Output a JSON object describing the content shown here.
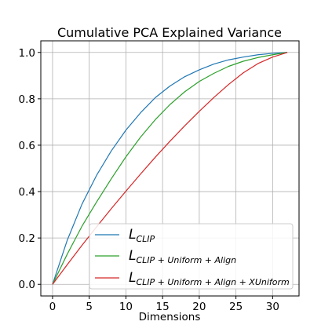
{
  "chart_data": {
    "type": "line",
    "title": "Cumulative PCA Explained Variance",
    "xlabel": "Dimensions",
    "ylabel": "",
    "xlim": [
      -1.6,
      33.6
    ],
    "ylim": [
      -0.05,
      1.05
    ],
    "xticks": [
      "0",
      "5",
      "10",
      "15",
      "20",
      "25",
      "30"
    ],
    "yticks": [
      "0.0",
      "0.2",
      "0.4",
      "0.6",
      "0.8",
      "1.0"
    ],
    "grid": true,
    "legend_position": "lower-right",
    "x": [
      0,
      2,
      4,
      6,
      8,
      10,
      12,
      14,
      16,
      18,
      20,
      22,
      24,
      26,
      28,
      30,
      32
    ],
    "series": [
      {
        "name_main": "L",
        "name_sub": "CLIP",
        "color": "#1f77b4",
        "values": [
          0.0,
          0.19,
          0.345,
          0.47,
          0.575,
          0.665,
          0.74,
          0.805,
          0.855,
          0.895,
          0.925,
          0.95,
          0.968,
          0.98,
          0.99,
          0.996,
          1.0
        ]
      },
      {
        "name_main": "L",
        "name_sub": "CLIP + Uniform + Align",
        "color": "#2ca02c",
        "values": [
          0.0,
          0.13,
          0.25,
          0.355,
          0.455,
          0.55,
          0.635,
          0.71,
          0.775,
          0.83,
          0.875,
          0.91,
          0.94,
          0.962,
          0.978,
          0.99,
          1.0
        ]
      },
      {
        "name_main": "L",
        "name_sub": "CLIP + Uniform + Align + XUniform",
        "color": "#d62728",
        "values": [
          0.0,
          0.085,
          0.168,
          0.248,
          0.326,
          0.402,
          0.476,
          0.548,
          0.617,
          0.683,
          0.746,
          0.806,
          0.862,
          0.912,
          0.952,
          0.98,
          1.0
        ]
      }
    ]
  }
}
